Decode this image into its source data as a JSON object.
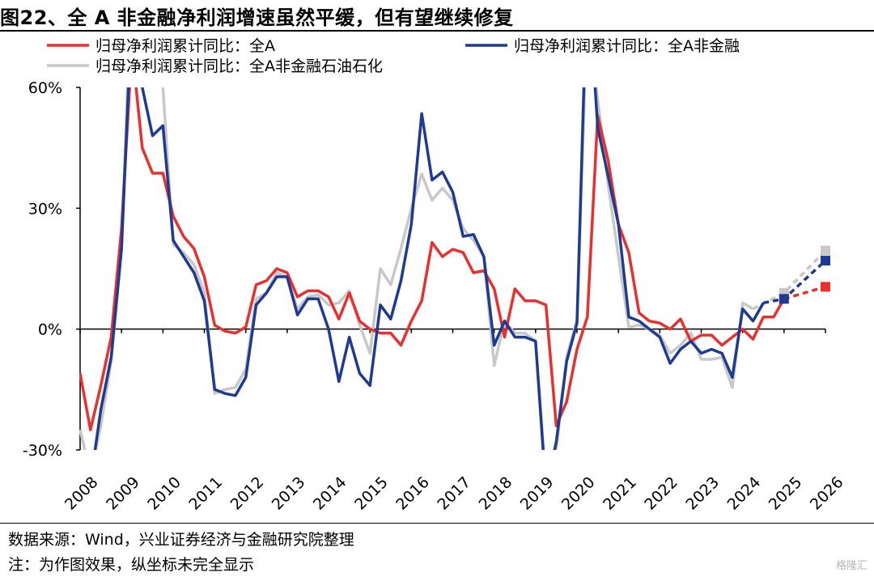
{
  "title": "图22、全 A 非金融净利润增速虽然平缓，但有望继续修复",
  "footer": {
    "source": "数据来源：Wind，兴业证券经济与金融研究院整理",
    "note": "注：为作图效果，纵坐标未完全显示"
  },
  "brand": "格隆汇",
  "chart_data": {
    "type": "line",
    "ylim": [
      -30,
      60
    ],
    "y_ticks": [
      -30,
      0,
      30,
      60
    ],
    "y_tick_labels": [
      "-30%",
      "0%",
      "30%",
      "60%"
    ],
    "x_tick_labels": [
      "2008",
      "2009",
      "2010",
      "2011",
      "2012",
      "2013",
      "2014",
      "2015",
      "2016",
      "2017",
      "2018",
      "2019",
      "2020",
      "2021",
      "2022",
      "2023",
      "2024",
      "2025",
      "2026"
    ],
    "x_range": [
      2008.0,
      2026.0
    ],
    "legend_position": "top",
    "series": [
      {
        "name": "归母净利润累计同比：全A",
        "color": "#e8302f",
        "points": [
          [
            2008.0,
            -11
          ],
          [
            2008.25,
            -25
          ],
          [
            2008.5,
            -14
          ],
          [
            2008.75,
            -2
          ],
          [
            2009.0,
            25
          ],
          [
            2009.25,
            70
          ],
          [
            2009.5,
            45
          ],
          [
            2009.75,
            38.7
          ],
          [
            2010.0,
            38.7
          ],
          [
            2010.25,
            28
          ],
          [
            2010.5,
            23
          ],
          [
            2010.75,
            20
          ],
          [
            2011.0,
            13
          ],
          [
            2011.25,
            1
          ],
          [
            2011.5,
            -0.5
          ],
          [
            2011.75,
            -1
          ],
          [
            2012.0,
            0.5
          ],
          [
            2012.25,
            11
          ],
          [
            2012.5,
            12
          ],
          [
            2012.75,
            15
          ],
          [
            2013.0,
            14
          ],
          [
            2013.25,
            8
          ],
          [
            2013.5,
            9.5
          ],
          [
            2013.75,
            9.5
          ],
          [
            2014.0,
            8
          ],
          [
            2014.25,
            2.5
          ],
          [
            2014.5,
            9
          ],
          [
            2014.75,
            2
          ],
          [
            2015.0,
            0
          ],
          [
            2015.25,
            -1
          ],
          [
            2015.5,
            -1
          ],
          [
            2015.75,
            -4
          ],
          [
            2016.0,
            2
          ],
          [
            2016.25,
            7
          ],
          [
            2016.5,
            21.5
          ],
          [
            2016.75,
            18
          ],
          [
            2017.0,
            19.8
          ],
          [
            2017.25,
            19
          ],
          [
            2017.5,
            14
          ],
          [
            2017.75,
            14.5
          ],
          [
            2018.0,
            10
          ],
          [
            2018.25,
            -2
          ],
          [
            2018.5,
            10
          ],
          [
            2018.75,
            7
          ],
          [
            2019.0,
            7
          ],
          [
            2019.25,
            6
          ],
          [
            2019.5,
            -24
          ],
          [
            2019.75,
            -18
          ],
          [
            2020.0,
            -5
          ],
          [
            2020.25,
            3
          ],
          [
            2020.5,
            53
          ],
          [
            2020.75,
            42
          ],
          [
            2021.0,
            26
          ],
          [
            2021.25,
            19
          ],
          [
            2021.5,
            4
          ],
          [
            2021.75,
            2
          ],
          [
            2022.0,
            1.5
          ],
          [
            2022.25,
            0
          ],
          [
            2022.5,
            2.5
          ],
          [
            2022.75,
            -3
          ],
          [
            2023.0,
            -1.5
          ],
          [
            2023.25,
            -1.5
          ],
          [
            2023.5,
            -4
          ],
          [
            2023.75,
            -2
          ],
          [
            2024.0,
            0
          ],
          [
            2024.25,
            -2.5
          ],
          [
            2024.5,
            3
          ],
          [
            2024.75,
            3
          ],
          [
            2025.0,
            7.5
          ]
        ],
        "forecast": [
          [
            2025.0,
            7.5
          ],
          [
            2026.0,
            10.5
          ]
        ]
      },
      {
        "name": "归母净利润累计同比：全A非金融",
        "color": "#1f3a93",
        "points": [
          [
            2008.0,
            -30
          ],
          [
            2008.25,
            -38
          ],
          [
            2008.5,
            -20
          ],
          [
            2008.75,
            -7
          ],
          [
            2009.0,
            20
          ],
          [
            2009.25,
            80
          ],
          [
            2009.5,
            60
          ],
          [
            2009.75,
            48
          ],
          [
            2010.0,
            50.5
          ],
          [
            2010.25,
            22
          ],
          [
            2010.5,
            18
          ],
          [
            2010.75,
            14
          ],
          [
            2011.0,
            7
          ],
          [
            2011.25,
            -15
          ],
          [
            2011.5,
            -16
          ],
          [
            2011.75,
            -16.5
          ],
          [
            2012.0,
            -12
          ],
          [
            2012.25,
            6
          ],
          [
            2012.5,
            9
          ],
          [
            2012.75,
            13
          ],
          [
            2013.0,
            13
          ],
          [
            2013.25,
            3.5
          ],
          [
            2013.5,
            7.5
          ],
          [
            2013.75,
            7.5
          ],
          [
            2014.0,
            0
          ],
          [
            2014.25,
            -13
          ],
          [
            2014.5,
            -2
          ],
          [
            2014.75,
            -11
          ],
          [
            2015.0,
            -14
          ],
          [
            2015.25,
            6
          ],
          [
            2015.5,
            2.5
          ],
          [
            2015.75,
            12
          ],
          [
            2016.0,
            26
          ],
          [
            2016.25,
            53.5
          ],
          [
            2016.5,
            37
          ],
          [
            2016.75,
            39
          ],
          [
            2017.0,
            34
          ],
          [
            2017.25,
            23
          ],
          [
            2017.5,
            23.5
          ],
          [
            2017.75,
            18
          ],
          [
            2018.0,
            -4
          ],
          [
            2018.25,
            2
          ],
          [
            2018.5,
            -2
          ],
          [
            2018.75,
            -2
          ],
          [
            2019.0,
            -3
          ],
          [
            2019.25,
            -40
          ],
          [
            2019.5,
            -28
          ],
          [
            2019.75,
            -8
          ],
          [
            2020.0,
            1.5
          ],
          [
            2020.25,
            90
          ],
          [
            2020.5,
            50
          ],
          [
            2020.75,
            38
          ],
          [
            2021.0,
            26
          ],
          [
            2021.25,
            3
          ],
          [
            2021.5,
            2
          ],
          [
            2021.75,
            0
          ],
          [
            2022.0,
            -2
          ],
          [
            2022.25,
            -8.5
          ],
          [
            2022.5,
            -5
          ],
          [
            2022.75,
            -3
          ],
          [
            2023.0,
            -6
          ],
          [
            2023.25,
            -5
          ],
          [
            2023.5,
            -6
          ],
          [
            2023.75,
            -12
          ],
          [
            2024.0,
            5
          ],
          [
            2024.25,
            2
          ],
          [
            2024.5,
            6.5
          ]
        ],
        "forecast": [
          [
            2024.5,
            6.5
          ],
          [
            2025.0,
            7.5
          ],
          [
            2026.0,
            17
          ]
        ]
      },
      {
        "name": "归母净利润累计同比：全A非金融石油石化",
        "color": "#c8c8c8",
        "points": [
          [
            2008.0,
            -25
          ],
          [
            2008.25,
            -36
          ],
          [
            2008.5,
            -24
          ],
          [
            2008.75,
            -8
          ],
          [
            2009.0,
            20
          ],
          [
            2009.25,
            90
          ],
          [
            2009.5,
            75
          ],
          [
            2009.75,
            65
          ],
          [
            2010.0,
            60
          ],
          [
            2010.25,
            21
          ],
          [
            2010.5,
            19
          ],
          [
            2010.75,
            16
          ],
          [
            2011.0,
            9
          ],
          [
            2011.25,
            -16
          ],
          [
            2011.5,
            -15
          ],
          [
            2011.75,
            -14.5
          ],
          [
            2012.0,
            -10
          ],
          [
            2012.25,
            7.5
          ],
          [
            2012.5,
            9
          ],
          [
            2012.75,
            14
          ],
          [
            2013.0,
            13
          ],
          [
            2013.25,
            5
          ],
          [
            2013.5,
            8
          ],
          [
            2013.75,
            8.5
          ],
          [
            2014.0,
            6
          ],
          [
            2014.25,
            6.5
          ],
          [
            2014.5,
            9.5
          ],
          [
            2014.75,
            1
          ],
          [
            2015.0,
            -6
          ],
          [
            2015.25,
            15
          ],
          [
            2015.5,
            11
          ],
          [
            2015.75,
            20
          ],
          [
            2016.0,
            30
          ],
          [
            2016.25,
            38.5
          ],
          [
            2016.5,
            32
          ],
          [
            2016.75,
            35
          ],
          [
            2017.0,
            32
          ],
          [
            2017.25,
            25
          ],
          [
            2017.5,
            22
          ],
          [
            2017.75,
            18
          ],
          [
            2018.0,
            -9
          ],
          [
            2018.25,
            2
          ],
          [
            2018.5,
            -1
          ],
          [
            2018.75,
            -1
          ],
          [
            2019.0,
            -3
          ],
          [
            2019.25,
            -38
          ],
          [
            2019.5,
            -30
          ],
          [
            2019.75,
            -7
          ],
          [
            2020.0,
            2.5
          ],
          [
            2020.25,
            80
          ],
          [
            2020.5,
            57
          ],
          [
            2020.75,
            36
          ],
          [
            2021.0,
            18
          ],
          [
            2021.25,
            0.5
          ],
          [
            2021.5,
            1
          ],
          [
            2021.75,
            0
          ],
          [
            2022.0,
            -1.5
          ],
          [
            2022.25,
            -6
          ],
          [
            2022.5,
            -4
          ],
          [
            2022.75,
            -1
          ],
          [
            2023.0,
            -7.5
          ],
          [
            2023.25,
            -7.5
          ],
          [
            2023.5,
            -7
          ],
          [
            2023.75,
            -14.5
          ],
          [
            2024.0,
            6.5
          ],
          [
            2024.25,
            5
          ]
        ],
        "forecast": [
          [
            2024.25,
            5
          ],
          [
            2025.0,
            9
          ],
          [
            2026.0,
            19.5
          ]
        ]
      }
    ]
  }
}
